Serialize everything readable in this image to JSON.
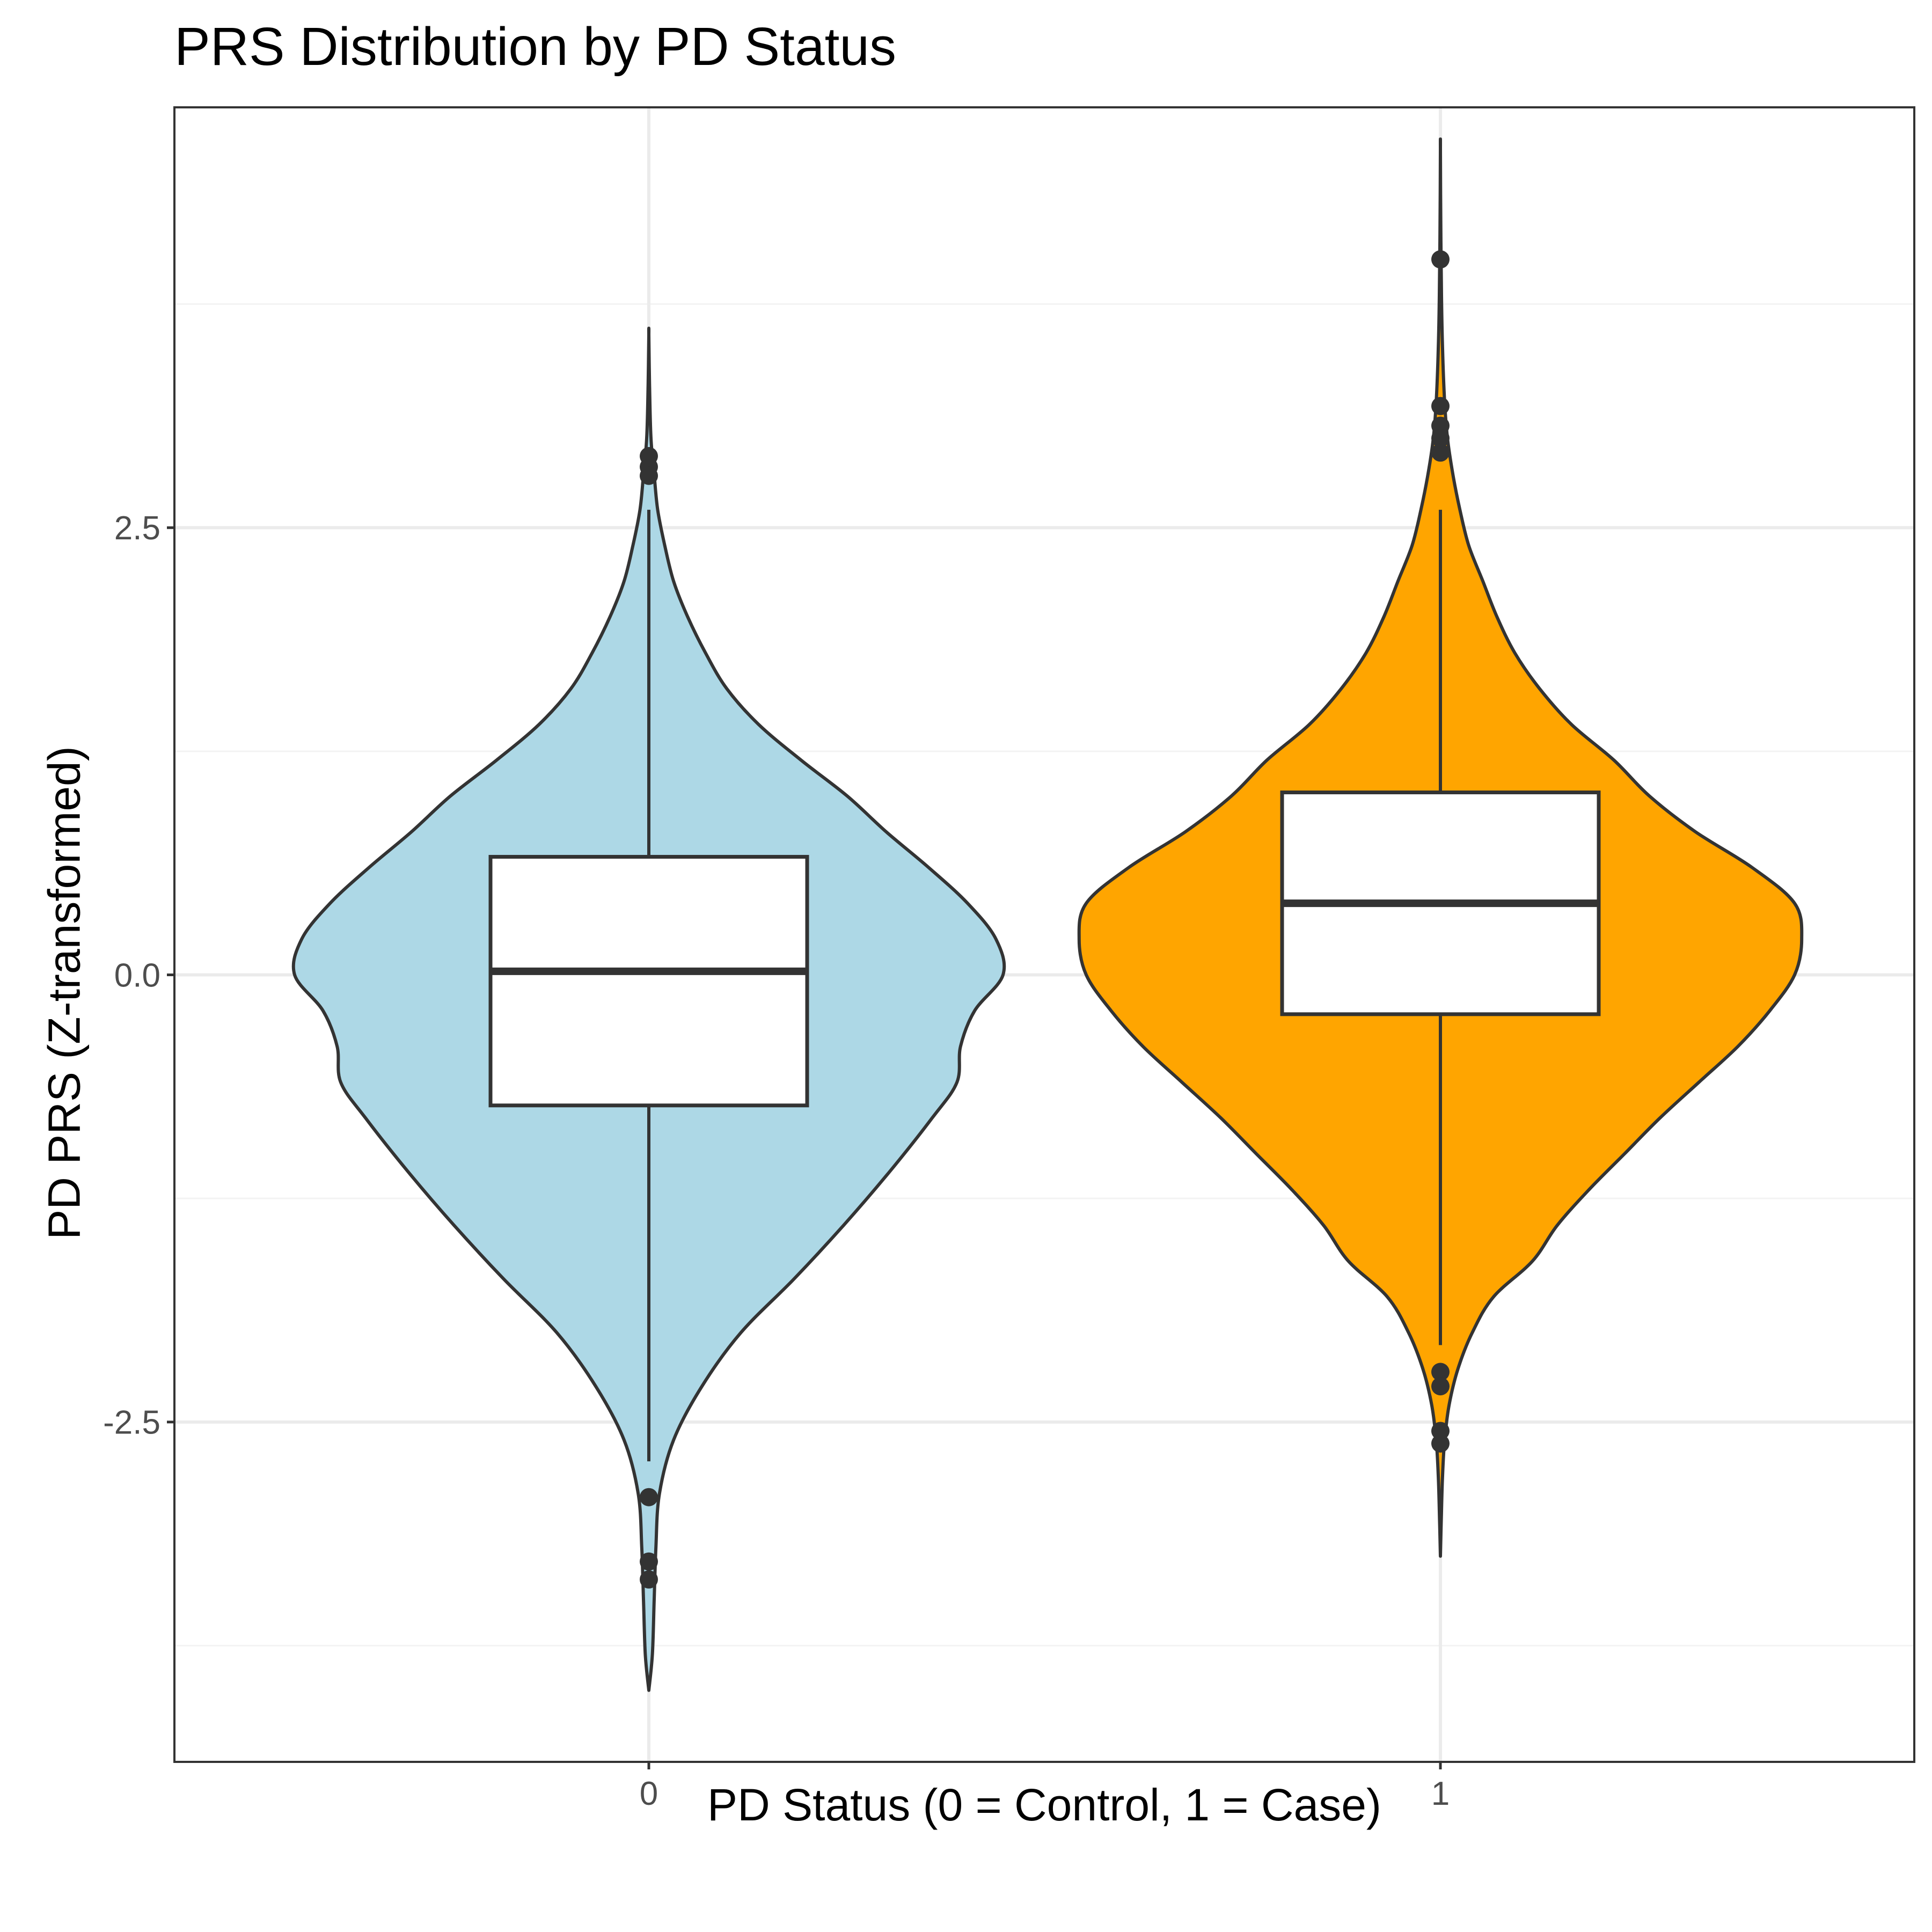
{
  "chart_data": {
    "type": "violin",
    "title": "PRS Distribution by PD Status",
    "xlabel": "PD Status (0 = Control, 1 = Case)",
    "ylabel": "PD PRS (Z-transformed)",
    "ylim": [
      -4.4,
      4.85
    ],
    "y_ticks": [
      -2.5,
      0.0,
      2.5
    ],
    "y_tick_labels": [
      "-2.5",
      "0.0",
      "2.5"
    ],
    "categories": [
      "0",
      "1"
    ],
    "grid": true,
    "groups": [
      {
        "category": "0",
        "fill": "#ADD8E6",
        "box": {
          "q1": -0.73,
          "median": 0.02,
          "q3": 0.66,
          "whisker_low": -2.72,
          "whisker_high": 2.6
        },
        "outliers": [
          2.9,
          2.84,
          2.79,
          -2.92,
          -3.28,
          -3.38
        ],
        "violin_range": [
          -4.0,
          3.58
        ],
        "density": [
          [
            -4.0,
            0.0
          ],
          [
            -3.8,
            0.01
          ],
          [
            -3.5,
            0.015
          ],
          [
            -3.2,
            0.02
          ],
          [
            -2.9,
            0.03
          ],
          [
            -2.6,
            0.07
          ],
          [
            -2.3,
            0.15
          ],
          [
            -2.0,
            0.26
          ],
          [
            -1.7,
            0.41
          ],
          [
            -1.4,
            0.55
          ],
          [
            -1.1,
            0.68
          ],
          [
            -0.8,
            0.8
          ],
          [
            -0.6,
            0.87
          ],
          [
            -0.4,
            0.88
          ],
          [
            -0.2,
            0.92
          ],
          [
            0.0,
            1.0
          ],
          [
            0.2,
            0.98
          ],
          [
            0.4,
            0.9
          ],
          [
            0.6,
            0.79
          ],
          [
            0.8,
            0.67
          ],
          [
            1.0,
            0.56
          ],
          [
            1.2,
            0.43
          ],
          [
            1.4,
            0.31
          ],
          [
            1.6,
            0.22
          ],
          [
            1.8,
            0.16
          ],
          [
            2.0,
            0.11
          ],
          [
            2.2,
            0.07
          ],
          [
            2.4,
            0.045
          ],
          [
            2.6,
            0.025
          ],
          [
            2.8,
            0.015
          ],
          [
            3.0,
            0.006
          ],
          [
            3.3,
            0.002
          ],
          [
            3.58,
            0.0
          ]
        ]
      },
      {
        "category": "1",
        "fill": "#FFA500",
        "box": {
          "q1": -0.22,
          "median": 0.4,
          "q3": 1.02,
          "whisker_low": -2.07,
          "whisker_high": 2.6
        },
        "outliers": [
          4.0,
          3.18,
          3.07,
          3.0,
          2.92,
          -2.22,
          -2.3,
          -2.55,
          -2.62
        ],
        "violin_range": [
          -3.25,
          4.62
        ],
        "density": [
          [
            -3.25,
            0.0
          ],
          [
            -3.0,
            0.003
          ],
          [
            -2.8,
            0.006
          ],
          [
            -2.6,
            0.012
          ],
          [
            -2.4,
            0.025
          ],
          [
            -2.2,
            0.05
          ],
          [
            -2.0,
            0.09
          ],
          [
            -1.8,
            0.15
          ],
          [
            -1.6,
            0.26
          ],
          [
            -1.4,
            0.33
          ],
          [
            -1.2,
            0.42
          ],
          [
            -1.0,
            0.52
          ],
          [
            -0.8,
            0.62
          ],
          [
            -0.6,
            0.73
          ],
          [
            -0.4,
            0.84
          ],
          [
            -0.2,
            0.93
          ],
          [
            0.0,
            1.0
          ],
          [
            0.2,
            1.02
          ],
          [
            0.4,
            1.0
          ],
          [
            0.6,
            0.88
          ],
          [
            0.8,
            0.72
          ],
          [
            1.0,
            0.59
          ],
          [
            1.2,
            0.49
          ],
          [
            1.4,
            0.37
          ],
          [
            1.6,
            0.28
          ],
          [
            1.8,
            0.21
          ],
          [
            2.0,
            0.16
          ],
          [
            2.2,
            0.12
          ],
          [
            2.4,
            0.08
          ],
          [
            2.6,
            0.055
          ],
          [
            2.8,
            0.035
          ],
          [
            3.0,
            0.02
          ],
          [
            3.2,
            0.012
          ],
          [
            3.5,
            0.006
          ],
          [
            3.8,
            0.003
          ],
          [
            4.2,
            0.001
          ],
          [
            4.62,
            0.0
          ]
        ]
      }
    ]
  },
  "colors": {
    "panel_border": "#333333",
    "grid_major": "#EBEBEB",
    "grid_minor": "#F3F3F3",
    "outline": "#333333",
    "box_fill": "#FFFFFF",
    "tick_label": "#4D4D4D"
  }
}
